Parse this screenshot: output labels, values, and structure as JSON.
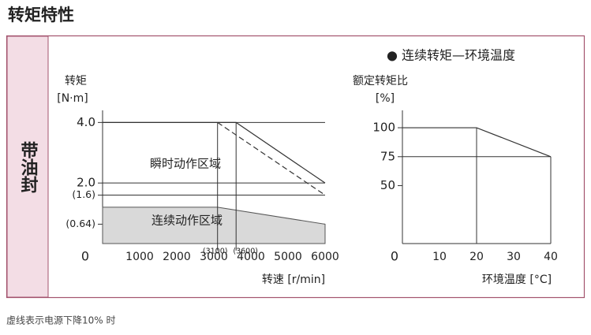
{
  "title": "转矩特性",
  "side_label": "带油封",
  "note": "● 连续转矩—环境温度",
  "footer": "虚线表示电源下降10% 时",
  "chart_data": [
    {
      "type": "line",
      "y_label": "转矩",
      "y_unit": "[N·m]",
      "x_label": "转速 [r/min]",
      "xlim": [
        0,
        6000
      ],
      "ylim": [
        0,
        4.4
      ],
      "xticks": [
        1000,
        2000,
        3000,
        4000,
        5000,
        6000
      ],
      "yticks": [
        0,
        {
          "value": 0.64,
          "label": "(0.64)"
        },
        {
          "value": 1.6,
          "label": "(1.6)"
        },
        {
          "value": 2,
          "label": "2.0"
        },
        {
          "value": 4,
          "label": "4.0"
        }
      ],
      "grid": true,
      "vlines": [
        {
          "value": 3100,
          "label": "(3100)"
        },
        {
          "value": 3600,
          "label": "(3600)"
        }
      ],
      "series": [
        {
          "name": "瞬时动作区域",
          "x": [
            0,
            3600,
            6000
          ],
          "values": [
            4,
            4,
            2
          ],
          "color": "#333333"
        },
        {
          "x": [
            3100,
            6000
          ],
          "values": [
            4,
            1.6
          ],
          "color": "#333333",
          "dashed": true
        },
        {
          "name": "连续动作区域",
          "x": [
            0,
            3100,
            6000
          ],
          "values": [
            1.2,
            1.2,
            0.64
          ],
          "color": "#555555",
          "fill": "#d9d9d9"
        }
      ]
    },
    {
      "type": "line",
      "y_label": "额定转矩比",
      "y_unit": "[%]",
      "x_label": "环境温度 [°C]",
      "xlim": [
        0,
        40
      ],
      "ylim": [
        0,
        115
      ],
      "xticks": [
        0,
        10,
        20,
        30,
        40
      ],
      "yticks": [
        50,
        75,
        100
      ],
      "grid": false,
      "drop_lines": true,
      "series": [
        {
          "x": [
            0,
            20,
            40
          ],
          "values": [
            100,
            100,
            75
          ],
          "color": "#333333"
        }
      ]
    }
  ]
}
